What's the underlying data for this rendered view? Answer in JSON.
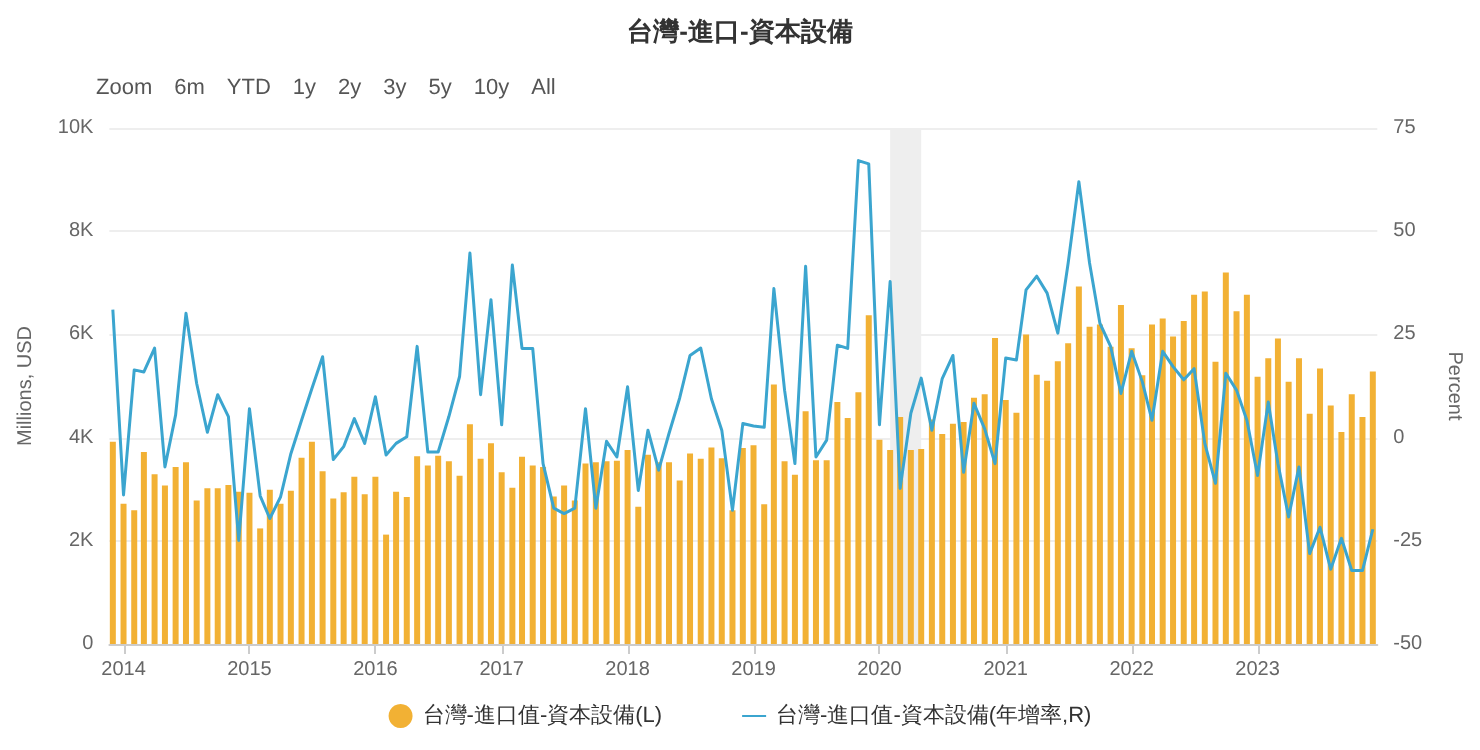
{
  "chart_data": {
    "type": "bar",
    "title": "台灣-進口-資本設備",
    "annotations": [
      "Zoom",
      "6m",
      "YTD",
      "1y",
      "2y",
      "3y",
      "5y",
      "10y",
      "All"
    ],
    "ylabel": "Millions, USD",
    "y2label": "Percent",
    "x": [
      "2013-12",
      "2014-01",
      "2014-02",
      "2014-03",
      "2014-04",
      "2014-05",
      "2014-06",
      "2014-07",
      "2014-08",
      "2014-09",
      "2014-10",
      "2014-11",
      "2014-12",
      "2015-01",
      "2015-02",
      "2015-03",
      "2015-04",
      "2015-05",
      "2015-06",
      "2015-07",
      "2015-08",
      "2015-09",
      "2015-10",
      "2015-11",
      "2015-12",
      "2016-01",
      "2016-02",
      "2016-03",
      "2016-04",
      "2016-05",
      "2016-06",
      "2016-07",
      "2016-08",
      "2016-09",
      "2016-10",
      "2016-11",
      "2016-12",
      "2017-01",
      "2017-02",
      "2017-03",
      "2017-04",
      "2017-05",
      "2017-06",
      "2017-07",
      "2017-08",
      "2017-09",
      "2017-10",
      "2017-11",
      "2017-12",
      "2018-01",
      "2018-02",
      "2018-03",
      "2018-04",
      "2018-05",
      "2018-06",
      "2018-07",
      "2018-08",
      "2018-09",
      "2018-10",
      "2018-11",
      "2018-12",
      "2019-01",
      "2019-02",
      "2019-03",
      "2019-04",
      "2019-05",
      "2019-06",
      "2019-07",
      "2019-08",
      "2019-09",
      "2019-10",
      "2019-11",
      "2019-12",
      "2020-01",
      "2020-02",
      "2020-03",
      "2020-04",
      "2020-05",
      "2020-06",
      "2020-07",
      "2020-08",
      "2020-09",
      "2020-10",
      "2020-11",
      "2020-12",
      "2021-01",
      "2021-02",
      "2021-03",
      "2021-04",
      "2021-05",
      "2021-06",
      "2021-07",
      "2021-08",
      "2021-09",
      "2021-10",
      "2021-11",
      "2021-12",
      "2022-01",
      "2022-02",
      "2022-03",
      "2022-04",
      "2022-05",
      "2022-06",
      "2022-07",
      "2022-08",
      "2022-09",
      "2022-10",
      "2022-11",
      "2022-12",
      "2023-01",
      "2023-02",
      "2023-03",
      "2023-04",
      "2023-05",
      "2023-06",
      "2023-07",
      "2023-08",
      "2023-09",
      "2023-10",
      "2023-11",
      "2023-12"
    ],
    "series": [
      {
        "name": "台灣-進口值-資本設備(L)",
        "color": "#f2b134",
        "values": [
          3920,
          2720,
          2590,
          3720,
          3290,
          3070,
          3430,
          3520,
          2780,
          3020,
          3020,
          3080,
          2950,
          2930,
          2240,
          2990,
          2720,
          2970,
          3610,
          3920,
          3350,
          2820,
          2940,
          3240,
          2900,
          3240,
          2120,
          2950,
          2850,
          3640,
          3460,
          3650,
          3540,
          3260,
          4260,
          3590,
          3890,
          3330,
          3030,
          3630,
          3460,
          3430,
          2860,
          3070,
          2780,
          3500,
          3520,
          3540,
          3550,
          3760,
          2660,
          3670,
          3520,
          3520,
          3170,
          3690,
          3590,
          3810,
          3600,
          2590,
          3800,
          3850,
          2710,
          5030,
          3540,
          3280,
          4510,
          3560,
          3560,
          4690,
          4380,
          4880,
          6370,
          3960,
          3760,
          4400,
          3760,
          3780,
          4350,
          4070,
          4270,
          4300,
          4770,
          4840,
          5930,
          4730,
          4480,
          6000,
          5220,
          5100,
          5480,
          5830,
          6930,
          6150,
          6190,
          5760,
          6570,
          5730,
          5210,
          6190,
          6310,
          5960,
          6260,
          6770,
          6830,
          5470,
          7200,
          6450,
          6770,
          5180,
          5540,
          5920,
          5080,
          5540,
          4460,
          5340,
          4620,
          4110,
          4840,
          4400,
          5280
        ]
      },
      {
        "name": "台灣-進口值-資本設備(年增率,R)",
        "type": "line",
        "axis": "y2",
        "color": "#3ba5cf",
        "values": [
          31.0,
          -13.9,
          16.4,
          15.9,
          21.7,
          -7.1,
          5.5,
          30.1,
          13.1,
          1.3,
          10.4,
          5.1,
          -24.9,
          7.0,
          -14.1,
          -19.6,
          -14.4,
          -3.9,
          4.2,
          11.9,
          19.6,
          -5.3,
          -2.2,
          4.6,
          -1.4,
          9.9,
          -4.2,
          -1.4,
          0.2,
          22.1,
          -3.5,
          -3.5,
          5.1,
          14.8,
          44.7,
          10.4,
          33.4,
          3.1,
          41.8,
          21.6,
          21.6,
          -6.3,
          -17.1,
          -18.4,
          -17.1,
          7.0,
          -17.1,
          -0.9,
          -4.7,
          12.3,
          -12.8,
          1.8,
          -7.9,
          1.0,
          9.6,
          19.9,
          21.7,
          9.4,
          1.8,
          -17.6,
          3.4,
          2.8,
          2.5,
          36.1,
          11.5,
          -6.3,
          41.5,
          -4.7,
          -0.6,
          22.4,
          21.6,
          67.1,
          66.3,
          3.1,
          37.8,
          -12.3,
          5.9,
          14.4,
          1.8,
          14.3,
          19.9,
          -8.4,
          8.3,
          2.1,
          -6.3,
          19.3,
          18.8,
          35.8,
          39.1,
          35.0,
          25.3,
          42.3,
          62.0,
          42.3,
          27.7,
          22.1,
          10.7,
          20.9,
          13.5,
          4.2,
          20.9,
          17.2,
          14.0,
          16.7,
          -1.4,
          -11.1,
          15.6,
          11.5,
          4.2,
          -9.2,
          8.6,
          -6.3,
          -19.2,
          -7.1,
          -28.1,
          -21.7,
          -31.9,
          -24.4,
          -32.2,
          -32.2,
          -22.2
        ]
      }
    ],
    "xlim": [
      "2013-11-21",
      "2023-12-14"
    ],
    "xticks": [
      "2014",
      "2015",
      "2016",
      "2017",
      "2018",
      "2019",
      "2020",
      "2021",
      "2022",
      "2023"
    ],
    "ylim": [
      0,
      10000
    ],
    "yticks": [
      {
        "value": 0,
        "label": "0"
      },
      {
        "value": 2000,
        "label": "2K"
      },
      {
        "value": 4000,
        "label": "4K"
      },
      {
        "value": 6000,
        "label": "6K"
      },
      {
        "value": 8000,
        "label": "8K"
      },
      {
        "value": 10000,
        "label": "10K"
      }
    ],
    "y2lim": [
      -50,
      75
    ],
    "y2ticks": [
      -50,
      -25,
      0,
      25,
      50,
      75
    ],
    "bands": [
      {
        "axis": "x",
        "from": "2020-02",
        "to": "2020-05",
        "color": "#eeeeee"
      }
    ],
    "grid": "y",
    "legend": "bottom",
    "marker": "none",
    "line_style": "solid"
  }
}
